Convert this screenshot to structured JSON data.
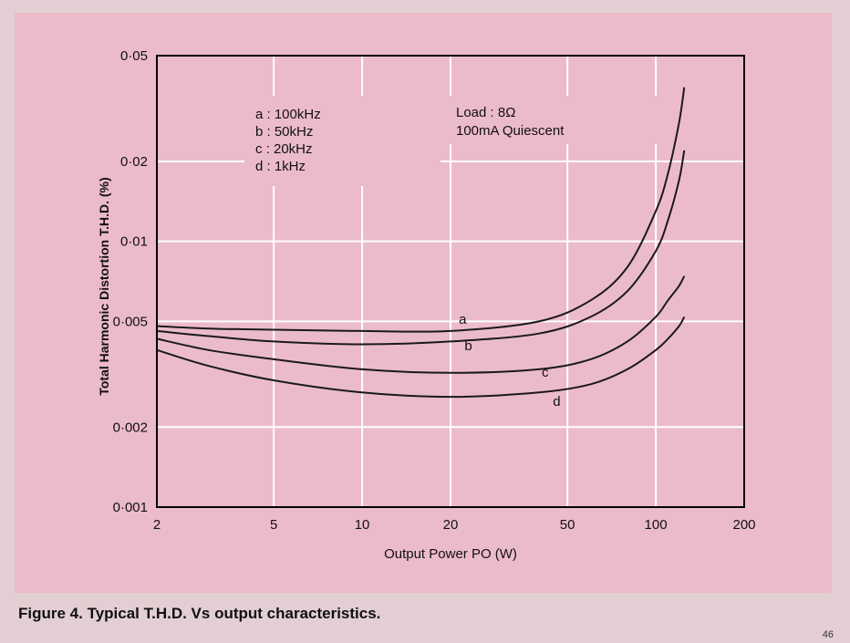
{
  "caption": "Figure 4. Typical T.H.D. Vs output characteristics.",
  "page_number": "46",
  "colors": {
    "panel": "#ecbbc9",
    "grid": "#ffffff",
    "curve": "#1a1a1a",
    "frame": "#000000"
  },
  "chart_data": {
    "type": "line",
    "title": "Typical T.H.D. Vs output characteristics",
    "xlabel": "Output Power  PO (W)",
    "ylabel": "Total Harmonic Distortion  T.H.D.  (%)",
    "xscale": "log",
    "yscale": "log",
    "xlim": [
      2,
      200
    ],
    "ylim": [
      0.001,
      0.05
    ],
    "xticks": [
      2,
      5,
      10,
      20,
      50,
      100,
      200
    ],
    "xtick_labels": [
      "2",
      "5",
      "10",
      "20",
      "50",
      "100",
      "200"
    ],
    "yticks": [
      0.001,
      0.002,
      0.005,
      0.01,
      0.02,
      0.05
    ],
    "ytick_labels": [
      "0·001",
      "0·002",
      "0·005",
      "0·01",
      "0·02",
      "0·05"
    ],
    "grid": true,
    "legend": {
      "items": [
        "a : 100kHz",
        "b :  50kHz",
        "c :  20kHz",
        "d :    1kHz"
      ]
    },
    "annotations": [
      "Load : 8Ω",
      "100mA  Quiescent"
    ],
    "series": [
      {
        "name": "a",
        "label": "100kHz",
        "x": [
          2,
          3,
          5,
          10,
          20,
          40,
          60,
          80,
          100,
          110,
          120,
          125
        ],
        "y": [
          0.0048,
          0.0047,
          0.00465,
          0.0046,
          0.0046,
          0.005,
          0.006,
          0.008,
          0.013,
          0.018,
          0.028,
          0.038
        ]
      },
      {
        "name": "b",
        "label": "50kHz",
        "x": [
          2,
          3,
          5,
          10,
          20,
          40,
          60,
          80,
          100,
          110,
          120,
          125
        ],
        "y": [
          0.0046,
          0.0044,
          0.0042,
          0.0041,
          0.0042,
          0.0045,
          0.0052,
          0.0065,
          0.0092,
          0.012,
          0.017,
          0.022
        ]
      },
      {
        "name": "c",
        "label": "20kHz",
        "x": [
          2,
          3,
          5,
          10,
          20,
          40,
          60,
          80,
          100,
          110,
          120,
          125
        ],
        "y": [
          0.0043,
          0.0039,
          0.0036,
          0.0033,
          0.0032,
          0.0033,
          0.0036,
          0.0042,
          0.0052,
          0.006,
          0.0068,
          0.0074
        ]
      },
      {
        "name": "d",
        "label": "1kHz",
        "x": [
          2,
          3,
          5,
          10,
          20,
          40,
          60,
          80,
          100,
          110,
          120,
          125
        ],
        "y": [
          0.0039,
          0.0034,
          0.003,
          0.0027,
          0.0026,
          0.0027,
          0.0029,
          0.0033,
          0.0039,
          0.0043,
          0.0048,
          0.0052
        ]
      }
    ],
    "curve_label_points": [
      {
        "name": "a",
        "x": 22,
        "y": 0.0049
      },
      {
        "name": "b",
        "x": 23,
        "y": 0.0039
      },
      {
        "name": "c",
        "x": 42,
        "y": 0.0031
      },
      {
        "name": "d",
        "x": 46,
        "y": 0.0024
      }
    ]
  }
}
